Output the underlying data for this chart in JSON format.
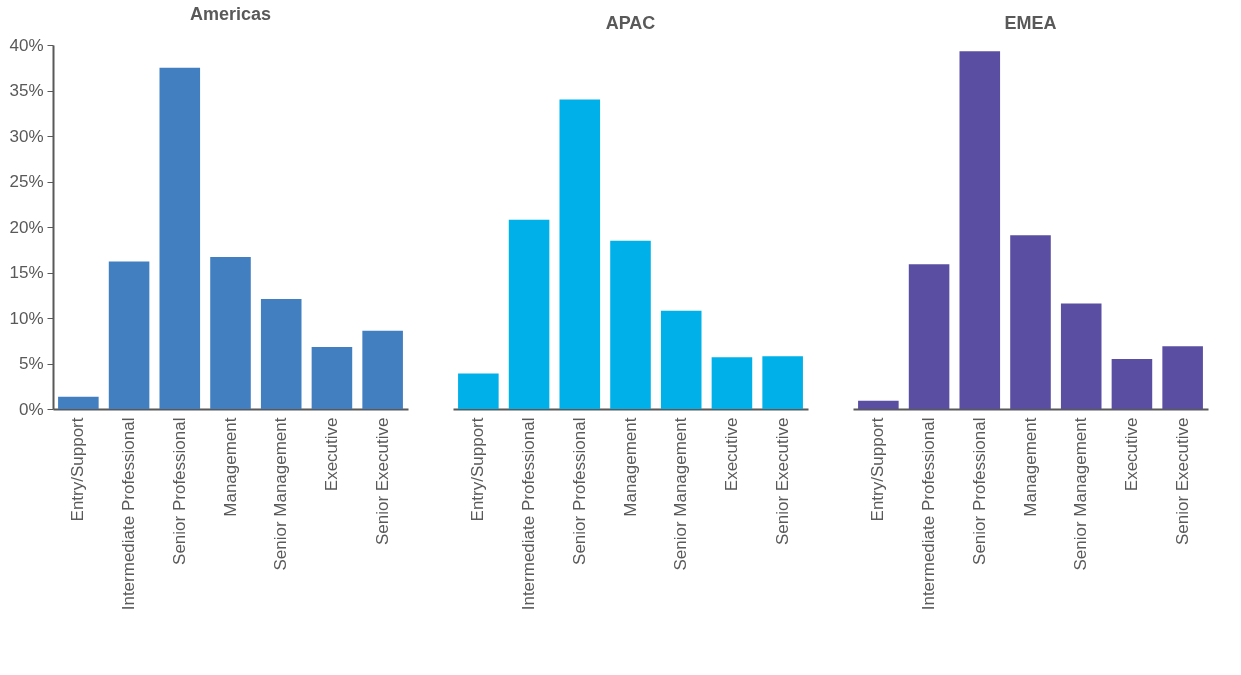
{
  "chart_data": [
    {
      "type": "bar",
      "title": "Americas",
      "categories": [
        "Entry/Support",
        "Intermediate Professional",
        "Senior Professional",
        "Management",
        "Senior Management",
        "Executive",
        "Senior Executive"
      ],
      "values": [
        1.35,
        16.2,
        37.5,
        16.7,
        12.1,
        6.8,
        8.6
      ],
      "color": "#427fc1",
      "ylim": [
        0,
        40
      ],
      "yticks": [
        {
          "value": 0,
          "label": "0%"
        },
        {
          "value": 5,
          "label": "5%"
        },
        {
          "value": 10,
          "label": "10%"
        },
        {
          "value": 15,
          "label": "15%"
        },
        {
          "value": 20,
          "label": "20%"
        },
        {
          "value": 25,
          "label": "25%"
        },
        {
          "value": 30,
          "label": "30%"
        },
        {
          "value": 35,
          "label": "35%"
        },
        {
          "value": 40,
          "label": "40%"
        }
      ],
      "grid": false
    },
    {
      "type": "bar",
      "title": "APAC",
      "categories": [
        "Entry/Support",
        "Intermediate Professional",
        "Senior Professional",
        "Management",
        "Senior Management",
        "Executive",
        "Senior Executive"
      ],
      "values": [
        3.9,
        20.8,
        34.0,
        18.5,
        10.8,
        5.7,
        5.8
      ],
      "color": "#00b0e8",
      "ylim": [
        0,
        40
      ],
      "grid": false,
      "tick_labels": "x"
    },
    {
      "type": "bar",
      "title": "EMEA",
      "categories": [
        "Entry/Support",
        "Intermediate Professional",
        "Senior Professional",
        "Management",
        "Senior Management",
        "Executive",
        "Senior Executive"
      ],
      "values": [
        0.9,
        15.9,
        39.3,
        19.1,
        11.6,
        5.5,
        6.9
      ],
      "color": "#594ea2",
      "ylim": [
        0,
        40
      ],
      "grid": false,
      "tick_labels": "x"
    }
  ]
}
